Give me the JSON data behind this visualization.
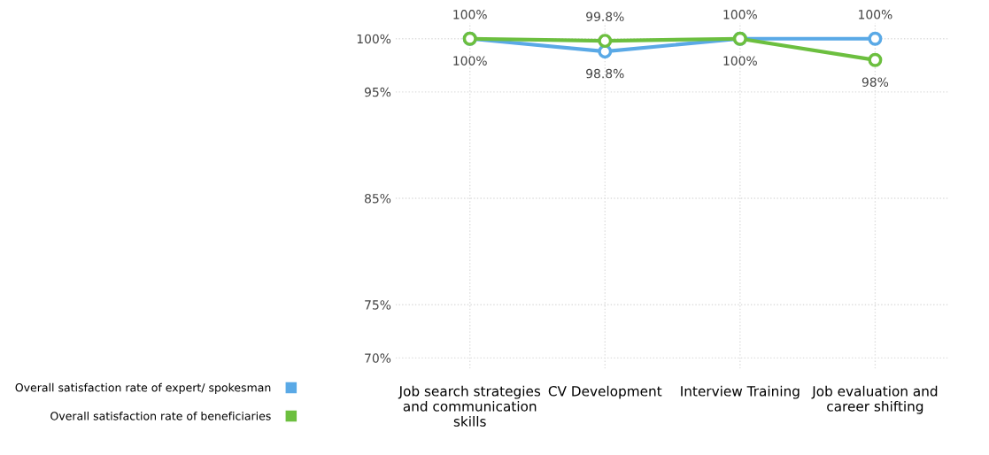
{
  "chart_data": {
    "type": "line",
    "categories": [
      "Job search strategies and communication skills",
      "CV Development",
      "Interview Training",
      "Job evaluation and career shifting"
    ],
    "series": [
      {
        "name": "Overall satisfaction rate of expert/ spokesman",
        "color": "#5aa9e6",
        "values": [
          100,
          98.8,
          100,
          100
        ],
        "value_labels": [
          "100%",
          "98.8%",
          "100%",
          "100%"
        ]
      },
      {
        "name": "Overall satisfaction rate of beneficiaries",
        "color": "#6cbf3f",
        "values": [
          100,
          99.8,
          100,
          98
        ],
        "value_labels": [
          "100%",
          "99.8%",
          "100%",
          "98%"
        ]
      }
    ],
    "ylim": [
      69,
      101.5
    ],
    "yticks": [
      {
        "value": 70,
        "label": "70%"
      },
      {
        "value": 75,
        "label": "75%"
      },
      {
        "value": 85,
        "label": "85%"
      },
      {
        "value": 95,
        "label": "95%"
      },
      {
        "value": 100,
        "label": "100%"
      }
    ],
    "grid": true,
    "legend": "bottom left",
    "marker": "circle",
    "line_style": "solid"
  }
}
